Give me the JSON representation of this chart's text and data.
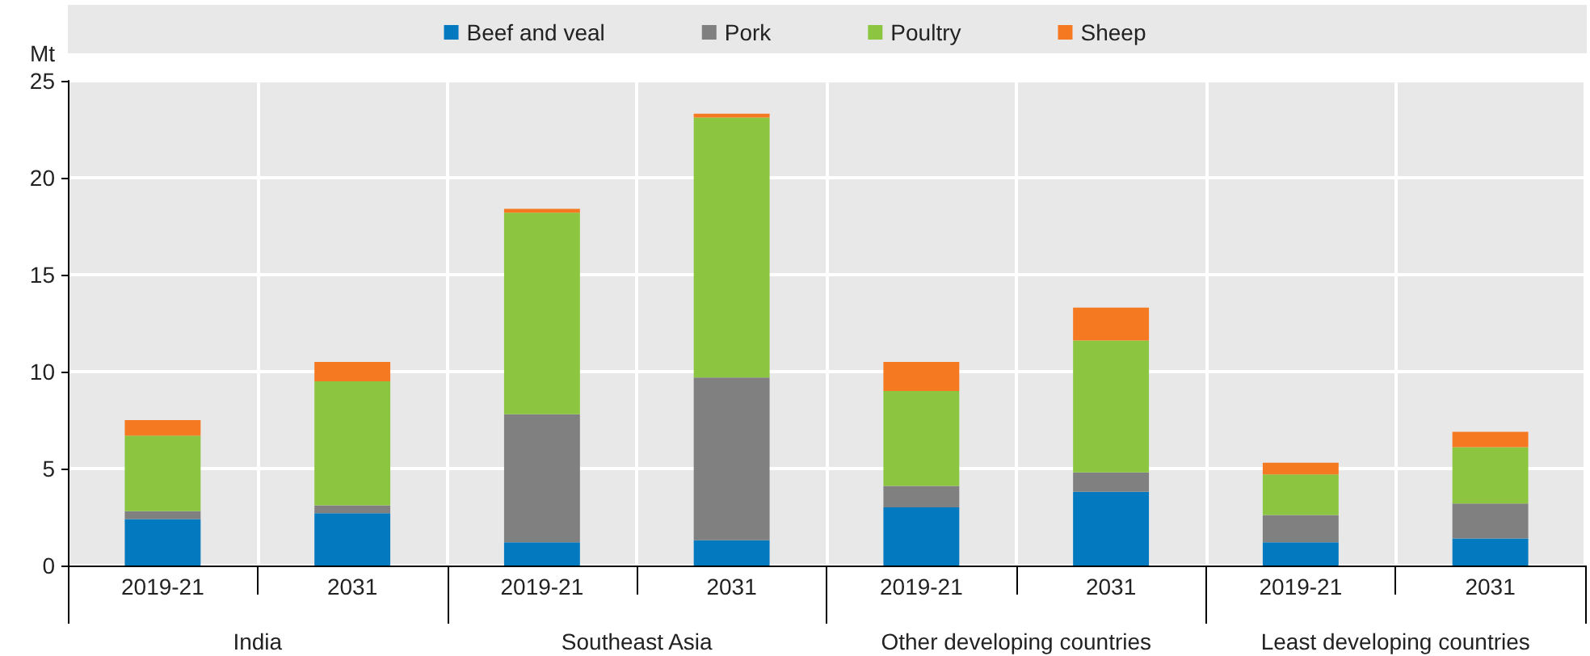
{
  "chart_data": {
    "type": "bar",
    "stacked": true,
    "ylabel": "Mt",
    "categories": [
      "2019-21",
      "2031",
      "2019-21",
      "2031",
      "2019-21",
      "2031",
      "2019-21",
      "2031"
    ],
    "annotations": [
      "India",
      "Southeast Asia",
      "Other developing countries",
      "Least developing countries"
    ],
    "series": [
      {
        "name": "Beef and veal",
        "color": "#0379c0",
        "values": [
          2.4,
          2.7,
          1.2,
          1.3,
          3.0,
          3.8,
          1.2,
          1.4
        ]
      },
      {
        "name": "Pork",
        "color": "#808080",
        "values": [
          0.4,
          0.4,
          6.6,
          8.4,
          1.1,
          1.0,
          1.4,
          1.8
        ]
      },
      {
        "name": "Poultry",
        "color": "#8cc640",
        "values": [
          3.9,
          6.4,
          10.4,
          13.4,
          4.9,
          6.8,
          2.1,
          2.9
        ]
      },
      {
        "name": "Sheep",
        "color": "#f47920",
        "values": [
          0.8,
          1.0,
          0.2,
          0.2,
          1.5,
          1.7,
          0.6,
          0.8
        ]
      }
    ],
    "ylim": [
      0,
      25
    ],
    "yticks": [
      0,
      5,
      10,
      15,
      20,
      25
    ],
    "grid": true,
    "legend": "top"
  }
}
